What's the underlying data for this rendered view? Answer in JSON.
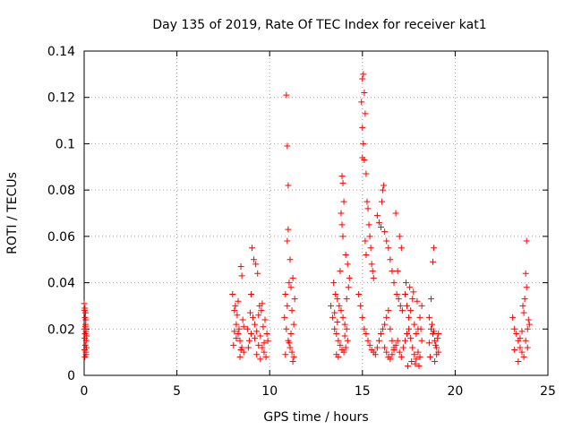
{
  "chart_data": {
    "type": "scatter",
    "title": "Day 135 of 2019, Rate Of TEC Index for receiver kat1",
    "xlabel": "GPS time / hours",
    "ylabel": "ROTI / TECUs",
    "xlim": [
      0,
      25
    ],
    "ylim": [
      0,
      0.14
    ],
    "xticks": [
      0,
      5,
      10,
      15,
      20,
      25
    ],
    "yticks": [
      0,
      0.02,
      0.04,
      0.06,
      0.08,
      0.1,
      0.12,
      0.14
    ],
    "xtick_labels": [
      "0",
      "5",
      "10",
      "15",
      "20",
      "25"
    ],
    "ytick_labels": [
      "0",
      "0.02",
      "0.04",
      "0.06",
      "0.08",
      "0.1",
      "0.12",
      "0.14"
    ],
    "grid": true,
    "legend": "none",
    "marker": "+",
    "color": "#ff0000",
    "points": [
      [
        0.0,
        0.031
      ],
      [
        0.02,
        0.028
      ],
      [
        0.05,
        0.025
      ],
      [
        0.08,
        0.022
      ],
      [
        0.1,
        0.019
      ],
      [
        0.03,
        0.016
      ],
      [
        0.06,
        0.013
      ],
      [
        0.09,
        0.01
      ],
      [
        0.04,
        0.008
      ],
      [
        0.12,
        0.012
      ],
      [
        0.01,
        0.02
      ],
      [
        0.07,
        0.027
      ],
      [
        0.11,
        0.015
      ],
      [
        0.05,
        0.018
      ],
      [
        0.02,
        0.011
      ],
      [
        0.09,
        0.024
      ],
      [
        0.06,
        0.021
      ],
      [
        0.1,
        0.009
      ],
      [
        0.13,
        0.017
      ],
      [
        0.04,
        0.029
      ],
      [
        8.0,
        0.035
      ],
      [
        8.1,
        0.028
      ],
      [
        8.2,
        0.022
      ],
      [
        8.3,
        0.018
      ],
      [
        8.4,
        0.015
      ],
      [
        8.5,
        0.012
      ],
      [
        8.6,
        0.01
      ],
      [
        8.15,
        0.03
      ],
      [
        8.25,
        0.026
      ],
      [
        8.35,
        0.02
      ],
      [
        8.45,
        0.047
      ],
      [
        8.5,
        0.043
      ],
      [
        8.05,
        0.013
      ],
      [
        8.4,
        0.008
      ],
      [
        8.55,
        0.024
      ],
      [
        8.2,
        0.016
      ],
      [
        8.3,
        0.032
      ],
      [
        8.1,
        0.019
      ],
      [
        8.6,
        0.021
      ],
      [
        8.45,
        0.011
      ],
      [
        8.8,
        0.02
      ],
      [
        8.9,
        0.015
      ],
      [
        9.0,
        0.018
      ],
      [
        9.1,
        0.025
      ],
      [
        9.2,
        0.022
      ],
      [
        9.3,
        0.019
      ],
      [
        9.4,
        0.013
      ],
      [
        9.5,
        0.017
      ],
      [
        9.6,
        0.012
      ],
      [
        9.7,
        0.01
      ],
      [
        9.8,
        0.008
      ],
      [
        9.9,
        0.015
      ],
      [
        9.05,
        0.055
      ],
      [
        9.15,
        0.05
      ],
      [
        9.25,
        0.048
      ],
      [
        9.35,
        0.044
      ],
      [
        9.45,
        0.03
      ],
      [
        9.55,
        0.028
      ],
      [
        8.95,
        0.027
      ],
      [
        9.65,
        0.021
      ],
      [
        9.75,
        0.024
      ],
      [
        9.85,
        0.018
      ],
      [
        9.3,
        0.009
      ],
      [
        9.5,
        0.007
      ],
      [
        8.85,
        0.012
      ],
      [
        9.0,
        0.035
      ],
      [
        9.6,
        0.031
      ],
      [
        9.2,
        0.016
      ],
      [
        9.4,
        0.026
      ],
      [
        9.7,
        0.014
      ],
      [
        10.8,
        0.025
      ],
      [
        10.9,
        0.02
      ],
      [
        11.0,
        0.015
      ],
      [
        11.1,
        0.012
      ],
      [
        11.2,
        0.01
      ],
      [
        11.3,
        0.008
      ],
      [
        10.85,
        0.035
      ],
      [
        10.95,
        0.03
      ],
      [
        11.05,
        0.04
      ],
      [
        11.15,
        0.038
      ],
      [
        11.25,
        0.042
      ],
      [
        11.35,
        0.033
      ],
      [
        11.0,
        0.063
      ],
      [
        10.95,
        0.058
      ],
      [
        11.1,
        0.05
      ],
      [
        10.9,
        0.121
      ],
      [
        10.95,
        0.099
      ],
      [
        11.0,
        0.082
      ],
      [
        11.2,
        0.028
      ],
      [
        11.3,
        0.022
      ],
      [
        11.15,
        0.018
      ],
      [
        11.05,
        0.014
      ],
      [
        10.85,
        0.009
      ],
      [
        11.25,
        0.006
      ],
      [
        13.3,
        0.03
      ],
      [
        13.4,
        0.025
      ],
      [
        13.5,
        0.02
      ],
      [
        13.6,
        0.018
      ],
      [
        13.7,
        0.015
      ],
      [
        13.8,
        0.013
      ],
      [
        13.9,
        0.011
      ],
      [
        14.0,
        0.01
      ],
      [
        14.1,
        0.012
      ],
      [
        14.2,
        0.015
      ],
      [
        13.45,
        0.04
      ],
      [
        13.55,
        0.035
      ],
      [
        13.65,
        0.033
      ],
      [
        13.75,
        0.03
      ],
      [
        13.85,
        0.028
      ],
      [
        13.95,
        0.025
      ],
      [
        14.05,
        0.022
      ],
      [
        14.15,
        0.02
      ],
      [
        13.8,
        0.045
      ],
      [
        13.9,
        0.065
      ],
      [
        13.85,
        0.07
      ],
      [
        13.95,
        0.06
      ],
      [
        13.9,
        0.086
      ],
      [
        13.95,
        0.083
      ],
      [
        14.0,
        0.075
      ],
      [
        14.1,
        0.052
      ],
      [
        14.2,
        0.048
      ],
      [
        14.3,
        0.042
      ],
      [
        13.6,
        0.009
      ],
      [
        13.7,
        0.008
      ],
      [
        14.25,
        0.038
      ],
      [
        13.5,
        0.027
      ],
      [
        14.05,
        0.017
      ],
      [
        13.65,
        0.023
      ],
      [
        14.15,
        0.033
      ],
      [
        14.8,
        0.035
      ],
      [
        14.9,
        0.03
      ],
      [
        15.0,
        0.025
      ],
      [
        15.1,
        0.02
      ],
      [
        15.2,
        0.018
      ],
      [
        15.3,
        0.015
      ],
      [
        15.4,
        0.013
      ],
      [
        15.5,
        0.011
      ],
      [
        15.6,
        0.01
      ],
      [
        15.7,
        0.009
      ],
      [
        15.8,
        0.012
      ],
      [
        15.9,
        0.015
      ],
      [
        16.0,
        0.018
      ],
      [
        16.1,
        0.02
      ],
      [
        16.2,
        0.022
      ],
      [
        16.3,
        0.025
      ],
      [
        16.4,
        0.028
      ],
      [
        16.5,
        0.02
      ],
      [
        16.6,
        0.015
      ],
      [
        16.7,
        0.012
      ],
      [
        15.0,
        0.128
      ],
      [
        15.05,
        0.13
      ],
      [
        15.1,
        0.122
      ],
      [
        15.15,
        0.113
      ],
      [
        14.95,
        0.118
      ],
      [
        15.0,
        0.107
      ],
      [
        15.05,
        0.1
      ],
      [
        15.0,
        0.094
      ],
      [
        15.1,
        0.093
      ],
      [
        15.2,
        0.087
      ],
      [
        15.25,
        0.075
      ],
      [
        15.3,
        0.072
      ],
      [
        15.35,
        0.065
      ],
      [
        15.4,
        0.06
      ],
      [
        15.15,
        0.058
      ],
      [
        15.45,
        0.055
      ],
      [
        15.2,
        0.052
      ],
      [
        15.5,
        0.048
      ],
      [
        15.55,
        0.045
      ],
      [
        15.6,
        0.042
      ],
      [
        15.8,
        0.069
      ],
      [
        15.9,
        0.066
      ],
      [
        16.0,
        0.064
      ],
      [
        16.1,
        0.08
      ],
      [
        16.15,
        0.082
      ],
      [
        16.05,
        0.075
      ],
      [
        16.2,
        0.062
      ],
      [
        16.3,
        0.058
      ],
      [
        16.4,
        0.055
      ],
      [
        16.5,
        0.05
      ],
      [
        16.6,
        0.045
      ],
      [
        16.7,
        0.04
      ],
      [
        16.8,
        0.07
      ],
      [
        16.9,
        0.045
      ],
      [
        17.0,
        0.06
      ],
      [
        17.1,
        0.055
      ],
      [
        16.85,
        0.035
      ],
      [
        16.95,
        0.033
      ],
      [
        17.05,
        0.03
      ],
      [
        17.15,
        0.028
      ],
      [
        16.2,
        0.012
      ],
      [
        16.3,
        0.01
      ],
      [
        16.4,
        0.008
      ],
      [
        16.5,
        0.007
      ],
      [
        16.6,
        0.009
      ],
      [
        16.7,
        0.011
      ],
      [
        16.8,
        0.013
      ],
      [
        16.9,
        0.015
      ],
      [
        17.0,
        0.01
      ],
      [
        17.1,
        0.008
      ],
      [
        17.2,
        0.012
      ],
      [
        17.3,
        0.015
      ],
      [
        17.4,
        0.018
      ],
      [
        17.5,
        0.02
      ],
      [
        17.6,
        0.016
      ],
      [
        17.7,
        0.012
      ],
      [
        17.8,
        0.009
      ],
      [
        17.9,
        0.007
      ],
      [
        18.0,
        0.01
      ],
      [
        18.1,
        0.008
      ],
      [
        17.3,
        0.035
      ],
      [
        17.4,
        0.03
      ],
      [
        17.5,
        0.025
      ],
      [
        17.6,
        0.028
      ],
      [
        17.7,
        0.033
      ],
      [
        17.8,
        0.022
      ],
      [
        17.9,
        0.018
      ],
      [
        18.0,
        0.02
      ],
      [
        18.1,
        0.025
      ],
      [
        18.2,
        0.03
      ],
      [
        17.35,
        0.04
      ],
      [
        17.55,
        0.038
      ],
      [
        17.75,
        0.036
      ],
      [
        17.95,
        0.032
      ],
      [
        18.15,
        0.02
      ],
      [
        18.2,
        0.015
      ],
      [
        17.45,
        0.004
      ],
      [
        17.85,
        0.005
      ],
      [
        17.65,
        0.006
      ],
      [
        18.05,
        0.004
      ],
      [
        18.6,
        0.025
      ],
      [
        18.7,
        0.02
      ],
      [
        18.8,
        0.018
      ],
      [
        18.9,
        0.015
      ],
      [
        19.0,
        0.012
      ],
      [
        19.1,
        0.01
      ],
      [
        18.65,
        0.008
      ],
      [
        18.75,
        0.022
      ],
      [
        18.85,
        0.019
      ],
      [
        18.95,
        0.013
      ],
      [
        19.05,
        0.016
      ],
      [
        18.7,
        0.033
      ],
      [
        18.85,
        0.055
      ],
      [
        18.8,
        0.049
      ],
      [
        18.9,
        0.006
      ],
      [
        19.1,
        0.018
      ],
      [
        18.6,
        0.014
      ],
      [
        19.0,
        0.009
      ],
      [
        23.1,
        0.025
      ],
      [
        23.2,
        0.02
      ],
      [
        23.3,
        0.018
      ],
      [
        23.4,
        0.015
      ],
      [
        23.5,
        0.012
      ],
      [
        23.6,
        0.01
      ],
      [
        23.7,
        0.008
      ],
      [
        23.8,
        0.015
      ],
      [
        23.9,
        0.02
      ],
      [
        24.0,
        0.022
      ],
      [
        23.65,
        0.03
      ],
      [
        23.75,
        0.033
      ],
      [
        23.85,
        0.038
      ],
      [
        23.8,
        0.044
      ],
      [
        23.85,
        0.058
      ],
      [
        23.7,
        0.027
      ],
      [
        23.95,
        0.024
      ],
      [
        23.2,
        0.011
      ],
      [
        23.4,
        0.006
      ],
      [
        23.6,
        0.019
      ],
      [
        23.9,
        0.012
      ],
      [
        23.5,
        0.016
      ]
    ]
  }
}
